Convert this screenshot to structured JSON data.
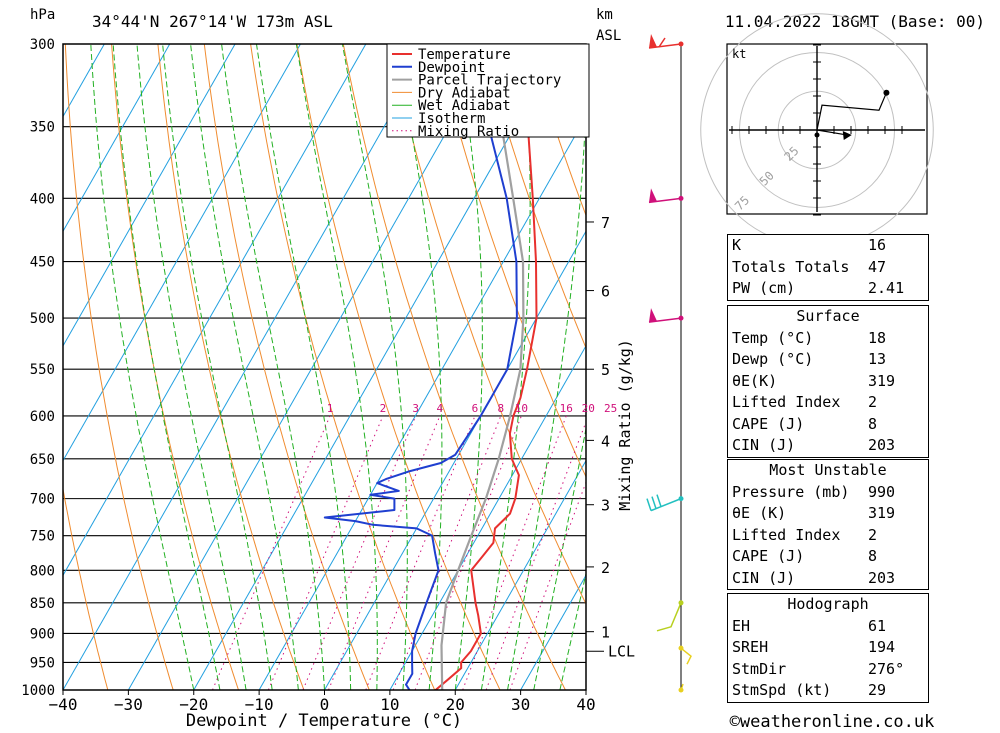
{
  "header": {
    "location": "34°44'N  267°14'W  173m  ASL",
    "datetime": "11.04.2022  18GMT  (Base: 00)",
    "unit_hpa": "hPa",
    "unit_km": "km",
    "unit_asl": "ASL"
  },
  "footer": {
    "copyright": "©weatheronline.co.uk"
  },
  "chart_data": {
    "type": "line",
    "title": "",
    "xlabel": "Dewpoint / Temperature (°C)",
    "ylabel": "hPa",
    "right_label": "Mixing Ratio (g/kg)",
    "x_ticks": [
      -40,
      -30,
      -20,
      -10,
      0,
      10,
      20,
      30,
      40
    ],
    "p_levels": [
      300,
      350,
      400,
      450,
      500,
      550,
      600,
      650,
      700,
      750,
      800,
      850,
      900,
      950,
      1000
    ],
    "km_ticks": [
      {
        "label": "7",
        "p": 418
      },
      {
        "label": "6",
        "p": 475
      },
      {
        "label": "5",
        "p": 550
      },
      {
        "label": "4",
        "p": 628
      },
      {
        "label": "3",
        "p": 708
      },
      {
        "label": "2",
        "p": 795
      },
      {
        "label": "1",
        "p": 897
      }
    ],
    "lcl_label": "LCL",
    "lcl_p": 920,
    "mixing_ratio_labels": [
      "1",
      "2",
      "3",
      "4",
      "6",
      "8",
      "10",
      "16",
      "20",
      "25"
    ],
    "mixing_ratio_values": [
      1,
      2,
      3,
      4,
      6,
      8,
      10,
      16,
      20,
      25
    ],
    "legend": [
      "Temperature",
      "Dewpoint",
      "Parcel Trajectory",
      "Dry Adiabat",
      "Wet Adiabat",
      "Isotherm",
      "Mixing Ratio"
    ],
    "colors": {
      "temperature": "#e8302e",
      "dewpoint": "#1f3fd0",
      "parcel": "#a0a0a0",
      "dry_adiabat": "#f08c30",
      "wet_adiabat": "#22b022",
      "isotherm": "#22a0e0",
      "mixing_ratio": "#d0107a"
    },
    "series": [
      {
        "name": "Temperature",
        "points": [
          [
            1000,
            17
          ],
          [
            980,
            18
          ],
          [
            960,
            19
          ],
          [
            950,
            18.5
          ],
          [
            930,
            19
          ],
          [
            900,
            19
          ],
          [
            870,
            17
          ],
          [
            850,
            15.5
          ],
          [
            800,
            12
          ],
          [
            780,
            12.5
          ],
          [
            760,
            13
          ],
          [
            740,
            12
          ],
          [
            720,
            13
          ],
          [
            700,
            12.5
          ],
          [
            670,
            11
          ],
          [
            650,
            8.5
          ],
          [
            620,
            6
          ],
          [
            600,
            5
          ],
          [
            580,
            4.5
          ],
          [
            550,
            3
          ],
          [
            500,
            0
          ],
          [
            450,
            -5
          ],
          [
            400,
            -11
          ],
          [
            350,
            -18
          ],
          [
            300,
            -27
          ]
        ]
      },
      {
        "name": "Dewpoint",
        "points": [
          [
            1000,
            13
          ],
          [
            990,
            12
          ],
          [
            970,
            12
          ],
          [
            950,
            11
          ],
          [
            930,
            10
          ],
          [
            900,
            9
          ],
          [
            850,
            8
          ],
          [
            800,
            7
          ],
          [
            775,
            5
          ],
          [
            750,
            3
          ],
          [
            740,
            0
          ],
          [
            735,
            -7
          ],
          [
            730,
            -10
          ],
          [
            725,
            -15
          ],
          [
            715,
            -5
          ],
          [
            700,
            -6
          ],
          [
            695,
            -10
          ],
          [
            690,
            -6
          ],
          [
            680,
            -10
          ],
          [
            675,
            -9
          ],
          [
            665,
            -6
          ],
          [
            655,
            -2
          ],
          [
            645,
            -0.5
          ],
          [
            600,
            0
          ],
          [
            580,
            0
          ],
          [
            560,
            0
          ],
          [
            550,
            0
          ],
          [
            500,
            -3
          ],
          [
            450,
            -8
          ],
          [
            400,
            -15
          ],
          [
            350,
            -24
          ],
          [
            300,
            -33
          ]
        ]
      },
      {
        "name": "Parcel Trajectory",
        "points": [
          [
            1000,
            18
          ],
          [
            920,
            14
          ],
          [
            850,
            11
          ],
          [
            800,
            10
          ],
          [
            750,
            9
          ],
          [
            700,
            8
          ],
          [
            650,
            6.5
          ],
          [
            600,
            4.5
          ],
          [
            550,
            2
          ],
          [
            500,
            -2
          ],
          [
            450,
            -7
          ],
          [
            400,
            -14
          ],
          [
            350,
            -22
          ],
          [
            300,
            -31
          ]
        ]
      }
    ],
    "wind_barbs": [
      {
        "p": 300,
        "color": "#e8302e"
      },
      {
        "p": 400,
        "color": "#d0107a"
      },
      {
        "p": 500,
        "color": "#d0107a"
      },
      {
        "p": 700,
        "color": "#22c0c0"
      },
      {
        "p": 850,
        "color": "#b8d020"
      },
      {
        "p": 925,
        "color": "#e8d020"
      },
      {
        "p": 1000,
        "color": "#e8d020"
      }
    ],
    "hodograph": {
      "unit_label": "kt",
      "ring_labels": [
        "25",
        "50",
        "75"
      ],
      "points": [
        [
          0,
          0
        ],
        [
          2,
          10
        ],
        [
          25,
          8
        ],
        [
          28,
          15
        ]
      ],
      "storm_motion": [
        12,
        -2
      ]
    }
  },
  "indices": {
    "general": [
      {
        "label": "K",
        "value": "16"
      },
      {
        "label": "Totals Totals",
        "value": "47"
      },
      {
        "label": "PW (cm)",
        "value": "2.41"
      }
    ],
    "surface_title": "Surface",
    "surface": [
      {
        "label": "Temp (°C)",
        "value": "18"
      },
      {
        "label": "Dewp (°C)",
        "value": "13"
      },
      {
        "label": "θE(K)",
        "value": "319"
      },
      {
        "label": "Lifted Index",
        "value": "2"
      },
      {
        "label": "CAPE (J)",
        "value": "8"
      },
      {
        "label": "CIN (J)",
        "value": "203"
      }
    ],
    "unstable_title": "Most Unstable",
    "unstable": [
      {
        "label": "Pressure (mb)",
        "value": "990"
      },
      {
        "label": "θE (K)",
        "value": "319"
      },
      {
        "label": "Lifted Index",
        "value": "2"
      },
      {
        "label": "CAPE (J)",
        "value": "8"
      },
      {
        "label": "CIN (J)",
        "value": "203"
      }
    ],
    "hodo_title": "Hodograph",
    "hodo": [
      {
        "label": "EH",
        "value": "61"
      },
      {
        "label": "SREH",
        "value": "194"
      },
      {
        "label": "StmDir",
        "value": "276°"
      },
      {
        "label": "StmSpd (kt)",
        "value": "29"
      }
    ]
  }
}
